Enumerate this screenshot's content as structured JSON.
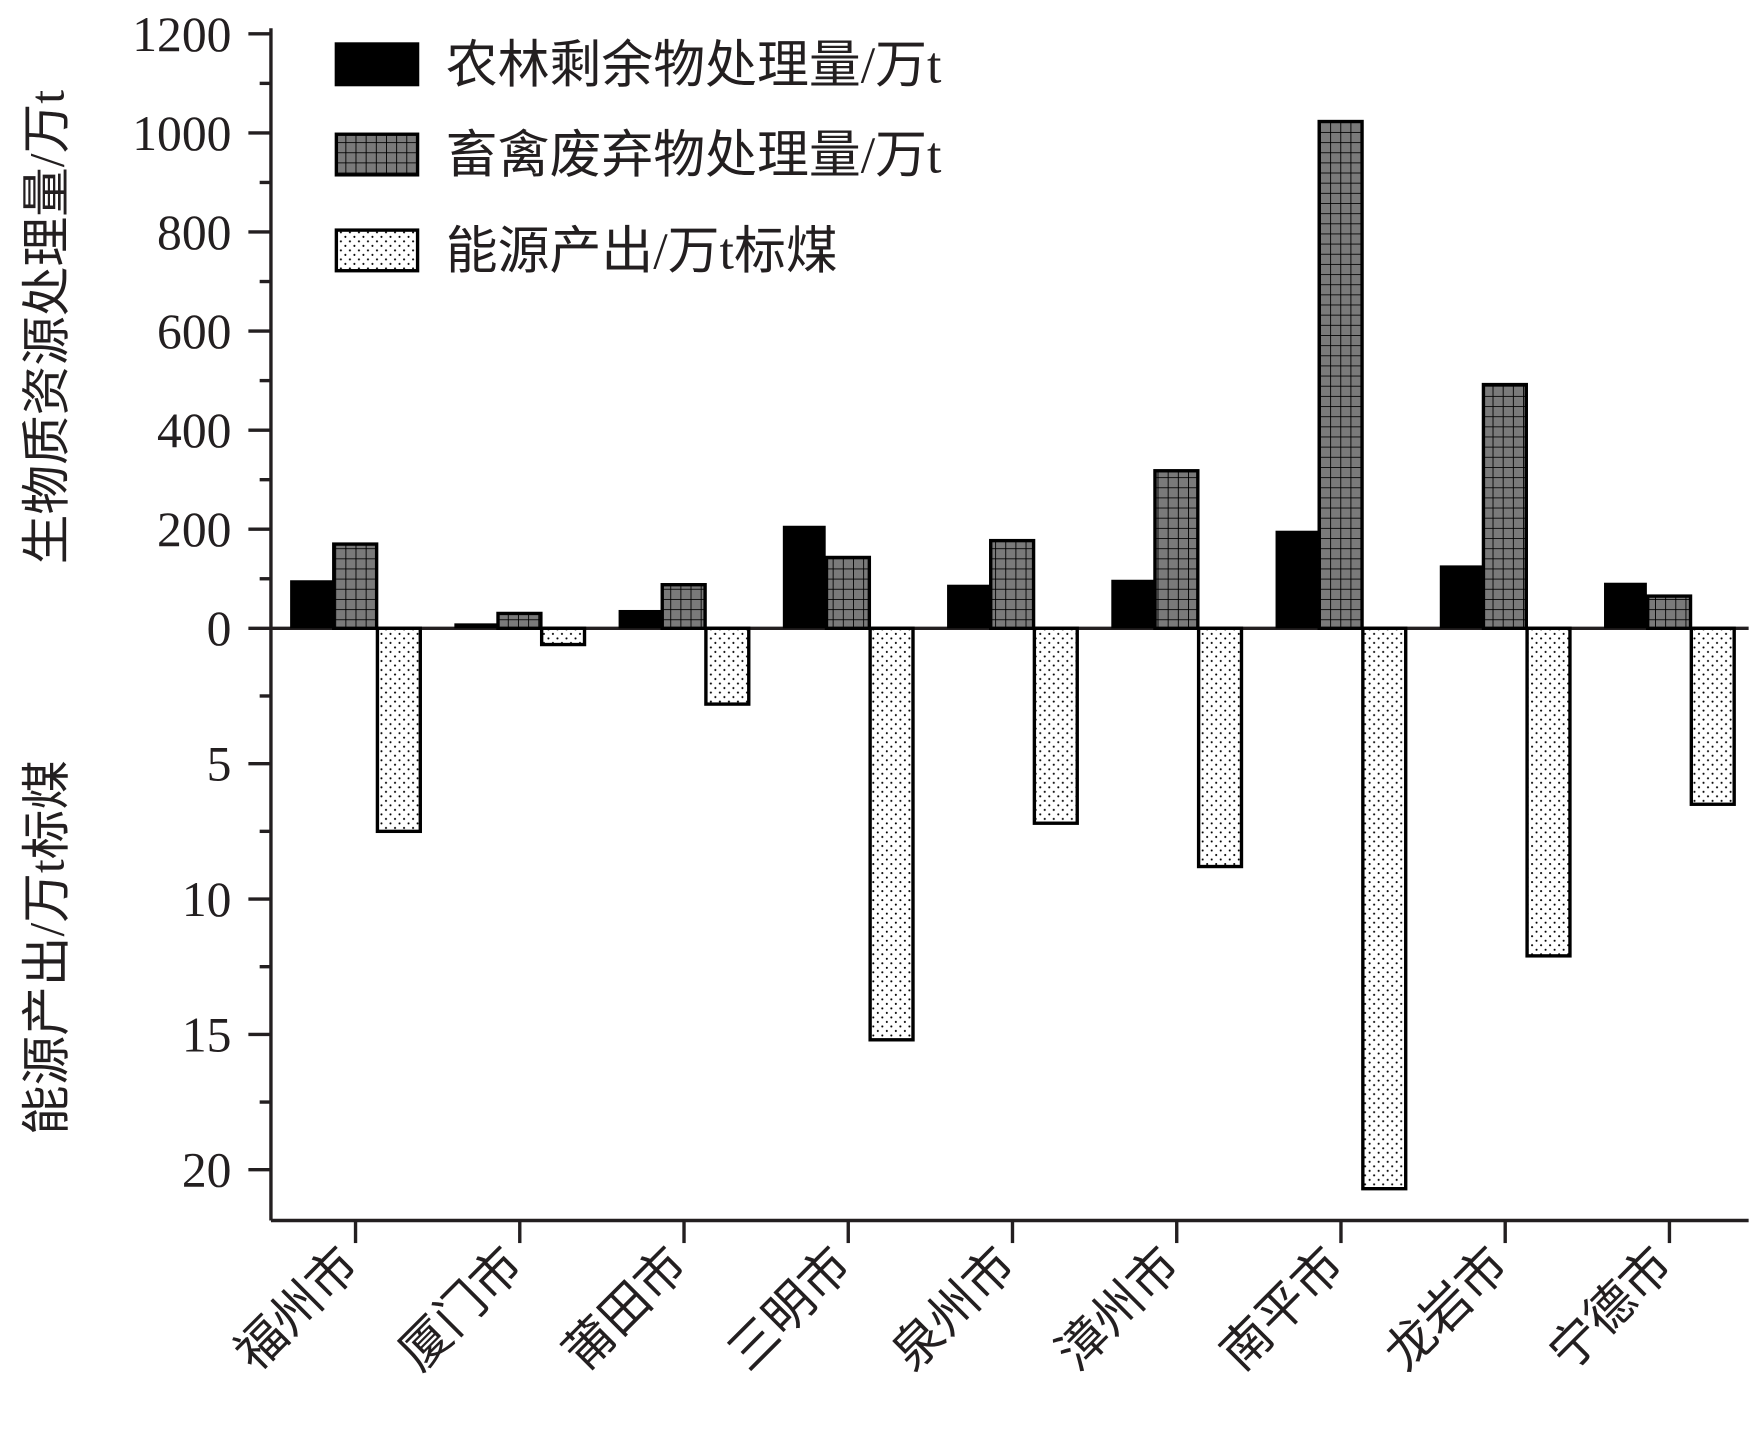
{
  "chart_data": {
    "type": "bar",
    "categories": [
      "福州市",
      "厦门市",
      "莆田市",
      "三明市",
      "泉州市",
      "漳州市",
      "南平市",
      "龙岩市",
      "宁德市"
    ],
    "series": [
      {
        "name": "农林剩余物处理量/万t",
        "axis": "upper",
        "pattern": "solid",
        "values": [
          97,
          10,
          37,
          207,
          88,
          98,
          197,
          127,
          92
        ]
      },
      {
        "name": "畜禽废弃物处理量/万t",
        "axis": "upper",
        "pattern": "grid",
        "values": [
          170,
          30,
          88,
          143,
          177,
          318,
          1023,
          492,
          65
        ]
      },
      {
        "name": "能源产出/万t标煤",
        "axis": "lower",
        "pattern": "dots",
        "values": [
          7.5,
          0.6,
          2.8,
          15.2,
          7.2,
          8.8,
          20.7,
          12.1,
          6.5
        ]
      }
    ],
    "upper_axis": {
      "label": "生物质资源处理量/万t",
      "range": [
        0,
        1200
      ],
      "ticks": [
        "0",
        "200",
        "400",
        "600",
        "800",
        "1000",
        "1200"
      ]
    },
    "lower_axis": {
      "label": "能源产出/万t标煤",
      "range": [
        0,
        22
      ],
      "inverted": true,
      "ticks": [
        "5",
        "10",
        "15",
        "20"
      ]
    },
    "legend_position": "top-left",
    "colors": {
      "solid": "#000000",
      "grid_fill": "#7a7a7a",
      "dots_fill": "#ffffff",
      "axis": "#231f20"
    }
  }
}
